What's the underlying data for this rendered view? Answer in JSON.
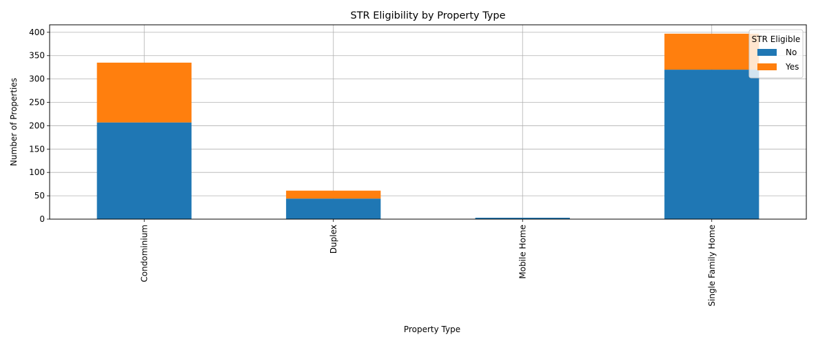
{
  "chart_data": {
    "type": "bar",
    "stacked": true,
    "title": "STR Eligibility by Property Type",
    "xlabel": "Property Type",
    "ylabel": "Number of Properties",
    "categories": [
      "Condominium",
      "Duplex",
      "Mobile Home",
      "Single Family Home"
    ],
    "series": [
      {
        "name": "No",
        "color": "#1f77b4",
        "values": [
          207,
          44,
          3,
          320
        ]
      },
      {
        "name": "Yes",
        "color": "#ff7f0e",
        "values": [
          128,
          17,
          0,
          77
        ]
      }
    ],
    "yticks": [
      0,
      50,
      100,
      150,
      200,
      250,
      300,
      350,
      400
    ],
    "ylim": [
      0,
      416
    ],
    "grid": true,
    "legend": {
      "title": "STR Eligible",
      "position": "top-right"
    }
  }
}
